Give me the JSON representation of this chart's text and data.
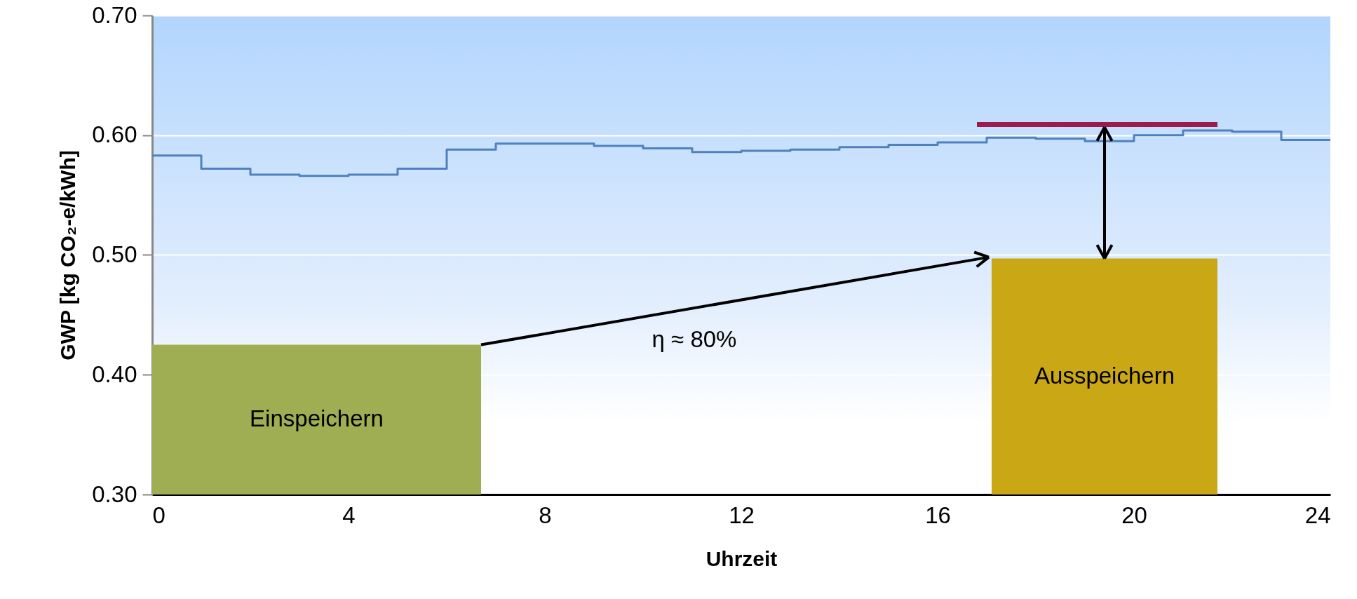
{
  "chart_data": {
    "type": "step",
    "xlabel": "Uhrzeit",
    "ylabel": "GWP [kg CO₂-e/kWh]",
    "xlim": [
      0,
      24
    ],
    "xticks": [
      0,
      4,
      8,
      12,
      16,
      20,
      24
    ],
    "ylim": [
      0.3,
      0.7
    ],
    "yticks": [
      {
        "value": 0.3,
        "label": "0.30"
      },
      {
        "value": 0.4,
        "label": "0.40"
      },
      {
        "value": 0.5,
        "label": "0.50"
      },
      {
        "value": 0.6,
        "label": "0.60"
      },
      {
        "value": 0.7,
        "label": "0.70"
      }
    ],
    "grid": "y",
    "series": [
      {
        "color": "#4f81bd",
        "x": [
          0,
          1,
          2,
          3,
          4,
          5,
          6,
          7,
          8,
          9,
          10,
          11,
          12,
          13,
          14,
          15,
          16,
          17,
          18,
          19,
          20,
          21,
          22,
          23,
          24
        ],
        "values": [
          0.583,
          0.572,
          0.567,
          0.566,
          0.567,
          0.572,
          0.588,
          0.593,
          0.593,
          0.591,
          0.589,
          0.586,
          0.587,
          0.588,
          0.59,
          0.592,
          0.594,
          0.598,
          0.597,
          0.595,
          0.6,
          0.604,
          0.603,
          0.596,
          0.596
        ]
      },
      {
        "type": "line",
        "color": "#9b1b4f",
        "x": [
          16.8,
          21.7
        ],
        "values": [
          0.609,
          0.609
        ]
      },
      {
        "type": "histogram",
        "colors": [
          "#9fae52",
          null,
          "#c9a715"
        ],
        "bins": [
          0,
          6.7,
          17.1,
          21.7
        ],
        "values": [
          0.425,
          null,
          0.497
        ],
        "value_labels": [
          "Einspeichern",
          null,
          "Ausspeichern"
        ]
      }
    ],
    "annotations": [
      "η ≈ 80%"
    ]
  }
}
